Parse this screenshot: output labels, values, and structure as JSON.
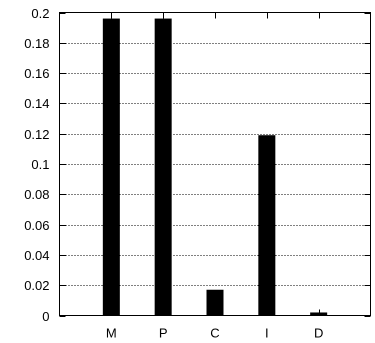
{
  "chart_data": {
    "type": "bar",
    "categories": [
      "M",
      "P",
      "C",
      "I",
      "D"
    ],
    "values": [
      0.196,
      0.196,
      0.017,
      0.119,
      0.002
    ],
    "title": "",
    "xlabel": "",
    "ylabel": "",
    "ylim": [
      0,
      0.2
    ],
    "yticks": [
      "0",
      "0.02",
      "0.04",
      "0.06",
      "0.08",
      "0.1",
      "0.12",
      "0.14",
      "0.16",
      "0.18",
      "0.2"
    ],
    "grid": "horizontal-dotted",
    "bar_color": "#000000"
  }
}
